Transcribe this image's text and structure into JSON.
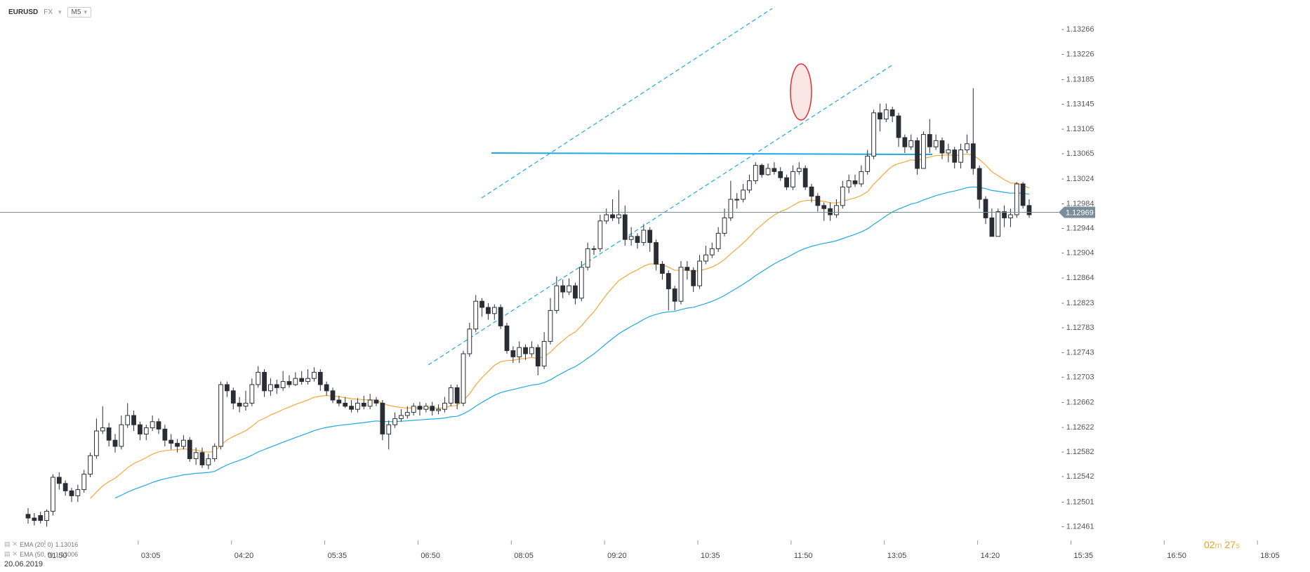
{
  "header": {
    "symbol": "EURUSD",
    "market": "FX",
    "timeframe": "M5"
  },
  "legend": [
    {
      "label": "EMA (20, 0)",
      "value": "1.13016",
      "color": "#f2a73a"
    },
    {
      "label": "EMA (50, 0)",
      "value": "1.13006",
      "color": "#1fa9e1"
    }
  ],
  "timer": {
    "minutes": "02",
    "m": "m",
    "seconds": "27",
    "s": "s"
  },
  "date_label": "20.06.2019",
  "colors": {
    "up": "#ffffff",
    "down": "#2a2d34",
    "ema20": "#f2a73a",
    "ema50": "#1fa9e1",
    "trend": "#1fa9e1",
    "highlight": "#e03030",
    "price_line": "#7a8e99"
  },
  "chart_data": {
    "type": "candlestick",
    "x_ticks": [
      "01:50",
      "03:05",
      "04:20",
      "05:35",
      "06:50",
      "08:05",
      "09:20",
      "10:35",
      "11:50",
      "13:05",
      "14:20",
      "15:35",
      "16:50",
      "18:05"
    ],
    "y_ticks": [
      "1.12461",
      "1.12501",
      "1.12542",
      "1.12582",
      "1.12622",
      "1.12662",
      "1.12703",
      "1.12743",
      "1.12783",
      "1.12823",
      "1.12864",
      "1.12904",
      "1.12944",
      "1.12984",
      "1.13024",
      "1.13065",
      "1.13105",
      "1.13145",
      "1.13185",
      "1.13226",
      "1.13266"
    ],
    "last_price": "1.12969",
    "ylim": [
      1.1244,
      1.1329
    ],
    "x_interval_min": 5,
    "x_start": "01:35",
    "candles": [
      [
        1.1248,
        1.12474,
        1.1249,
        1.12465
      ],
      [
        1.12474,
        1.1247,
        1.12482,
        1.12462
      ],
      [
        1.12478,
        1.1247,
        1.12484,
        1.12465
      ],
      [
        1.1247,
        1.12485,
        1.12488,
        1.1246
      ],
      [
        1.12485,
        1.1254,
        1.12545,
        1.12478
      ],
      [
        1.1254,
        1.1253,
        1.12548,
        1.1252
      ],
      [
        1.1253,
        1.12518,
        1.12535,
        1.1251
      ],
      [
        1.12518,
        1.1251,
        1.12523,
        1.125
      ],
      [
        1.1251,
        1.1252,
        1.12528,
        1.125
      ],
      [
        1.1252,
        1.12545,
        1.12552,
        1.12515
      ],
      [
        1.12545,
        1.12575,
        1.1258,
        1.1254
      ],
      [
        1.12575,
        1.12615,
        1.12635,
        1.1257
      ],
      [
        1.12615,
        1.1262,
        1.12655,
        1.1261
      ],
      [
        1.1262,
        1.126,
        1.12628,
        1.1259
      ],
      [
        1.126,
        1.1259,
        1.1261,
        1.1258
      ],
      [
        1.1259,
        1.12625,
        1.1264,
        1.12585
      ],
      [
        1.12625,
        1.1264,
        1.1266,
        1.1262
      ],
      [
        1.1264,
        1.12625,
        1.12648,
        1.12615
      ],
      [
        1.12625,
        1.1261,
        1.1263,
        1.126
      ],
      [
        1.1261,
        1.1262,
        1.12625,
        1.126
      ],
      [
        1.1262,
        1.1263,
        1.1264,
        1.12615
      ],
      [
        1.1263,
        1.12618,
        1.12635,
        1.1261
      ],
      [
        1.12618,
        1.126,
        1.12625,
        1.1259
      ],
      [
        1.126,
        1.12595,
        1.1261,
        1.12585
      ],
      [
        1.12595,
        1.1259,
        1.12602,
        1.1258
      ],
      [
        1.1259,
        1.126,
        1.12608,
        1.12585
      ],
      [
        1.126,
        1.1257,
        1.12605,
        1.12565
      ],
      [
        1.1257,
        1.1258,
        1.12588,
        1.1256
      ],
      [
        1.1258,
        1.1256,
        1.12588,
        1.12555
      ],
      [
        1.1256,
        1.1257,
        1.12578,
        1.12553
      ],
      [
        1.1257,
        1.1259,
        1.12595,
        1.12565
      ],
      [
        1.1259,
        1.1269,
        1.12695,
        1.12585
      ],
      [
        1.1269,
        1.1268,
        1.12695,
        1.1267
      ],
      [
        1.1268,
        1.1266,
        1.12685,
        1.1265
      ],
      [
        1.1266,
        1.12655,
        1.1267,
        1.12645
      ],
      [
        1.12655,
        1.1266,
        1.1268,
        1.12648
      ],
      [
        1.1266,
        1.1269,
        1.127,
        1.12655
      ],
      [
        1.1269,
        1.1271,
        1.1272,
        1.12685
      ],
      [
        1.1271,
        1.1268,
        1.12715,
        1.1267
      ],
      [
        1.1268,
        1.1269,
        1.127,
        1.12672
      ],
      [
        1.1269,
        1.12685,
        1.12698,
        1.12675
      ],
      [
        1.12685,
        1.12695,
        1.12712,
        1.1268
      ],
      [
        1.12695,
        1.1269,
        1.12705,
        1.12685
      ],
      [
        1.1269,
        1.127,
        1.1271,
        1.12688
      ],
      [
        1.127,
        1.12695,
        1.12712,
        1.1269
      ],
      [
        1.12695,
        1.127,
        1.12715,
        1.1269
      ],
      [
        1.127,
        1.1271,
        1.12718,
        1.12695
      ],
      [
        1.1271,
        1.1269,
        1.12715,
        1.1268
      ],
      [
        1.1269,
        1.1268,
        1.12695,
        1.12672
      ],
      [
        1.1268,
        1.12665,
        1.12685,
        1.1266
      ],
      [
        1.12665,
        1.1266,
        1.12672,
        1.12655
      ],
      [
        1.1266,
        1.12655,
        1.1267,
        1.12652
      ],
      [
        1.12655,
        1.1265,
        1.12665,
        1.12645
      ],
      [
        1.1265,
        1.1266,
        1.12668,
        1.12645
      ],
      [
        1.1266,
        1.12655,
        1.12672,
        1.1265
      ],
      [
        1.12655,
        1.12665,
        1.12675,
        1.1265
      ],
      [
        1.12665,
        1.1266,
        1.1267,
        1.12655
      ],
      [
        1.1266,
        1.1261,
        1.12665,
        1.126
      ],
      [
        1.1261,
        1.12625,
        1.12632,
        1.12585
      ],
      [
        1.12625,
        1.12635,
        1.12645,
        1.1262
      ],
      [
        1.12635,
        1.1264,
        1.1265,
        1.1263
      ],
      [
        1.1264,
        1.12645,
        1.12655,
        1.12635
      ],
      [
        1.12645,
        1.12655,
        1.1266,
        1.1264
      ],
      [
        1.12655,
        1.1265,
        1.12662,
        1.1264
      ],
      [
        1.1265,
        1.12655,
        1.1266,
        1.12645
      ],
      [
        1.12655,
        1.12648,
        1.12662,
        1.1264
      ],
      [
        1.12648,
        1.1265,
        1.12658,
        1.12642
      ],
      [
        1.1265,
        1.1266,
        1.1267,
        1.12645
      ],
      [
        1.1266,
        1.12685,
        1.1269,
        1.12655
      ],
      [
        1.12685,
        1.1266,
        1.1269,
        1.1265
      ],
      [
        1.1266,
        1.1274,
        1.12745,
        1.12655
      ],
      [
        1.1274,
        1.1278,
        1.1279,
        1.12735
      ],
      [
        1.1278,
        1.12825,
        1.12835,
        1.12775
      ],
      [
        1.12825,
        1.12815,
        1.1283,
        1.128
      ],
      [
        1.12815,
        1.12805,
        1.12822,
        1.12795
      ],
      [
        1.12805,
        1.12815,
        1.1282,
        1.12795
      ],
      [
        1.12815,
        1.12785,
        1.1282,
        1.1278
      ],
      [
        1.12785,
        1.12745,
        1.1279,
        1.1274
      ],
      [
        1.12745,
        1.12735,
        1.12752,
        1.12725
      ],
      [
        1.12735,
        1.1275,
        1.1276,
        1.12725
      ],
      [
        1.1275,
        1.1274,
        1.12755,
        1.1273
      ],
      [
        1.1274,
        1.1275,
        1.1276,
        1.12735
      ],
      [
        1.1275,
        1.1272,
        1.12755,
        1.12705
      ],
      [
        1.1272,
        1.1276,
        1.12775,
        1.12715
      ],
      [
        1.1276,
        1.1281,
        1.1283,
        1.12755
      ],
      [
        1.1281,
        1.1285,
        1.12865,
        1.12805
      ],
      [
        1.1285,
        1.1284,
        1.1286,
        1.1283
      ],
      [
        1.1284,
        1.1285,
        1.12862,
        1.12835
      ],
      [
        1.1285,
        1.1283,
        1.12855,
        1.1282
      ],
      [
        1.1283,
        1.1288,
        1.1289,
        1.12825
      ],
      [
        1.1288,
        1.1291,
        1.1292,
        1.12875
      ],
      [
        1.1291,
        1.1291,
        1.12915,
        1.129
      ],
      [
        1.1291,
        1.12955,
        1.12965,
        1.12905
      ],
      [
        1.12955,
        1.12965,
        1.12975,
        1.1295
      ],
      [
        1.12965,
        1.1296,
        1.1299,
        1.12955
      ],
      [
        1.1296,
        1.12965,
        1.13005,
        1.1295
      ],
      [
        1.12965,
        1.12925,
        1.1298,
        1.12915
      ],
      [
        1.12925,
        1.1293,
        1.12945,
        1.12915
      ],
      [
        1.1293,
        1.1292,
        1.12935,
        1.1291
      ],
      [
        1.1292,
        1.1294,
        1.1295,
        1.12915
      ],
      [
        1.1294,
        1.1292,
        1.12945,
        1.12905
      ],
      [
        1.1292,
        1.12885,
        1.12925,
        1.12875
      ],
      [
        1.12885,
        1.1287,
        1.1289,
        1.1286
      ],
      [
        1.1287,
        1.12845,
        1.12875,
        1.1281
      ],
      [
        1.12845,
        1.12825,
        1.1285,
        1.1281
      ],
      [
        1.12825,
        1.1288,
        1.1289,
        1.1282
      ],
      [
        1.1288,
        1.12875,
        1.1289,
        1.1286
      ],
      [
        1.12875,
        1.1285,
        1.1288,
        1.1284
      ],
      [
        1.1285,
        1.1289,
        1.129,
        1.12845
      ],
      [
        1.1289,
        1.129,
        1.12915,
        1.12885
      ],
      [
        1.129,
        1.1291,
        1.1292,
        1.12895
      ],
      [
        1.1291,
        1.12935,
        1.12945,
        1.12905
      ],
      [
        1.12935,
        1.1296,
        1.12975,
        1.1293
      ],
      [
        1.1296,
        1.1299,
        1.1302,
        1.12955
      ],
      [
        1.1299,
        1.1299,
        1.13,
        1.12975
      ],
      [
        1.1299,
        1.13005,
        1.13015,
        1.12985
      ],
      [
        1.13005,
        1.1302,
        1.1303,
        1.13
      ],
      [
        1.1302,
        1.13045,
        1.1305,
        1.13015
      ],
      [
        1.13045,
        1.1303,
        1.13048,
        1.13025
      ],
      [
        1.1303,
        1.1304,
        1.13048,
        1.13028
      ],
      [
        1.1304,
        1.13035,
        1.1305,
        1.1303
      ],
      [
        1.13035,
        1.13025,
        1.13042,
        1.1302
      ],
      [
        1.13025,
        1.1301,
        1.1303,
        1.13005
      ],
      [
        1.1301,
        1.13035,
        1.13045,
        1.13005
      ],
      [
        1.13035,
        1.1304,
        1.1305,
        1.1303
      ],
      [
        1.1304,
        1.1301,
        1.13045,
        1.13005
      ],
      [
        1.1301,
        1.12995,
        1.13015,
        1.12985
      ],
      [
        1.12995,
        1.1298,
        1.13,
        1.1297
      ],
      [
        1.1298,
        1.12975,
        1.12985,
        1.12955
      ],
      [
        1.12975,
        1.12965,
        1.12985,
        1.12955
      ],
      [
        1.12965,
        1.1298,
        1.1299,
        1.1296
      ],
      [
        1.1298,
        1.1301,
        1.1302,
        1.12975
      ],
      [
        1.1301,
        1.1302,
        1.1303,
        1.13
      ],
      [
        1.1302,
        1.13015,
        1.1303,
        1.1301
      ],
      [
        1.13015,
        1.13035,
        1.13045,
        1.1301
      ],
      [
        1.13035,
        1.1306,
        1.1307,
        1.1303
      ],
      [
        1.1306,
        1.1313,
        1.13135,
        1.13055
      ],
      [
        1.1313,
        1.1312,
        1.13145,
        1.131
      ],
      [
        1.1312,
        1.13135,
        1.13145,
        1.13115
      ],
      [
        1.13135,
        1.13125,
        1.1314,
        1.13115
      ],
      [
        1.13125,
        1.1309,
        1.1313,
        1.13075
      ],
      [
        1.1309,
        1.13075,
        1.13095,
        1.13065
      ],
      [
        1.13075,
        1.13085,
        1.13095,
        1.1307
      ],
      [
        1.13085,
        1.1304,
        1.1309,
        1.1303
      ],
      [
        1.1304,
        1.13095,
        1.131,
        1.1304
      ],
      [
        1.13095,
        1.13075,
        1.1312,
        1.13065
      ],
      [
        1.13075,
        1.13085,
        1.13095,
        1.1307
      ],
      [
        1.13085,
        1.13065,
        1.1309,
        1.13055
      ],
      [
        1.13065,
        1.1307,
        1.1308,
        1.1305
      ],
      [
        1.1307,
        1.1305,
        1.13075,
        1.1304
      ],
      [
        1.1305,
        1.1307,
        1.1308,
        1.1304
      ],
      [
        1.1307,
        1.1308,
        1.13095,
        1.13065
      ],
      [
        1.1308,
        1.1304,
        1.1317,
        1.1303
      ],
      [
        1.1304,
        1.1299,
        1.13045,
        1.12975
      ],
      [
        1.1299,
        1.1296,
        1.12995,
        1.1295
      ],
      [
        1.1296,
        1.1293,
        1.12975,
        1.1293
      ],
      [
        1.1293,
        1.1297,
        1.12975,
        1.1293
      ],
      [
        1.1297,
        1.1296,
        1.1298,
        1.12945
      ],
      [
        1.1296,
        1.12965,
        1.12975,
        1.12945
      ],
      [
        1.12965,
        1.13015,
        1.13018,
        1.1296
      ],
      [
        1.13015,
        1.1298,
        1.13018,
        1.12975
      ],
      [
        1.1298,
        1.12965,
        1.1299,
        1.1296
      ]
    ]
  }
}
